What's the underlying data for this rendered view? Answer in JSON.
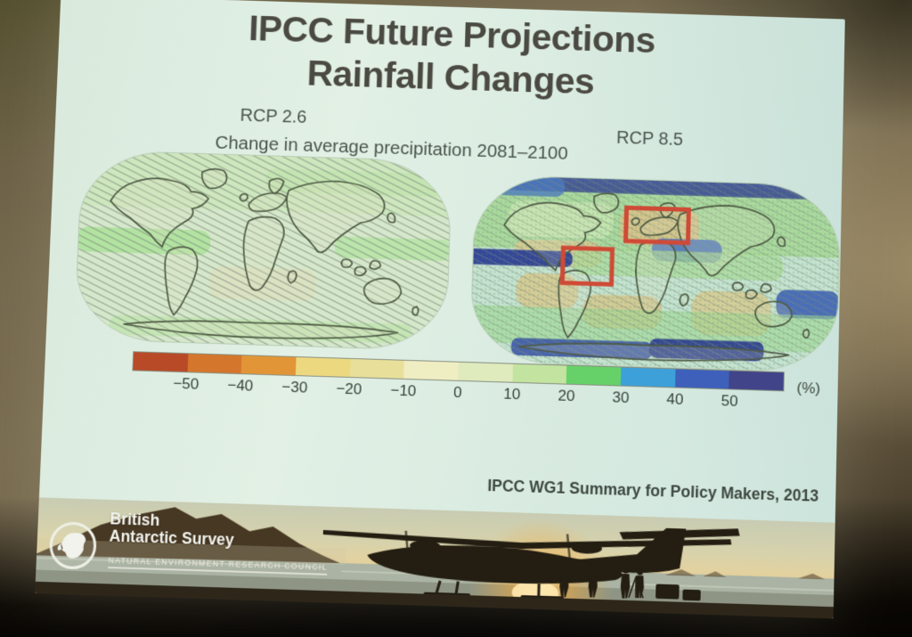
{
  "slide": {
    "title_line1": "IPCC Future Projections",
    "title_line2": "Rainfall Changes",
    "scenario_left": "RCP 2.6",
    "scenario_right": "RCP 8.5",
    "subtitle": "Change in average precipitation 2081–2100",
    "credit": "IPCC WG1 Summary for Policy Makers, 2013"
  },
  "colorbar": {
    "unit_label": "(%)",
    "tick_labels": [
      "−50",
      "−40",
      "−30",
      "−20",
      "−10",
      "0",
      "10",
      "20",
      "30",
      "40",
      "50"
    ],
    "segment_colors": [
      "#b84a28",
      "#d4762c",
      "#e29536",
      "#ecd87f",
      "#e8e09a",
      "#efedc2",
      "#dfeabd",
      "#c3e4a0",
      "#66d168",
      "#3da0d9",
      "#3e60bb",
      "#414489"
    ]
  },
  "banner": {
    "org_line1": "British",
    "org_line2": "Antarctic Survey",
    "org_line3": "NATURAL ENVIRONMENT RESEARCH COUNCIL"
  },
  "chart_data": {
    "type": "heatmap",
    "title": "IPCC Future Projections — Rainfall Changes",
    "subtitle": "Change in average precipitation 2081–2100",
    "panels": [
      {
        "label": "RCP 2.6",
        "description": "World map of projected precipitation change; mostly near-zero change (pale green) with hatching over most of the globe"
      },
      {
        "label": "RCP 8.5",
        "description": "World map of projected precipitation change; strong drying (orange/tan) in the subtropics, strong wetting (green/blue) at high latitudes and the equatorial Pacific; red boxes highlight the Mediterranean region and western South America"
      }
    ],
    "colorbar": {
      "unit": "%",
      "tick_values": [
        -50,
        -40,
        -30,
        -20,
        -10,
        0,
        10,
        20,
        30,
        40,
        50
      ],
      "n_segments": 12,
      "range_description": "dark red (below −50%) through pale yellow-green (0%) to dark blue (above +50%)"
    },
    "legend_position": "bottom",
    "source_note": "IPCC WG1 Summary for Policy Makers, 2013"
  }
}
